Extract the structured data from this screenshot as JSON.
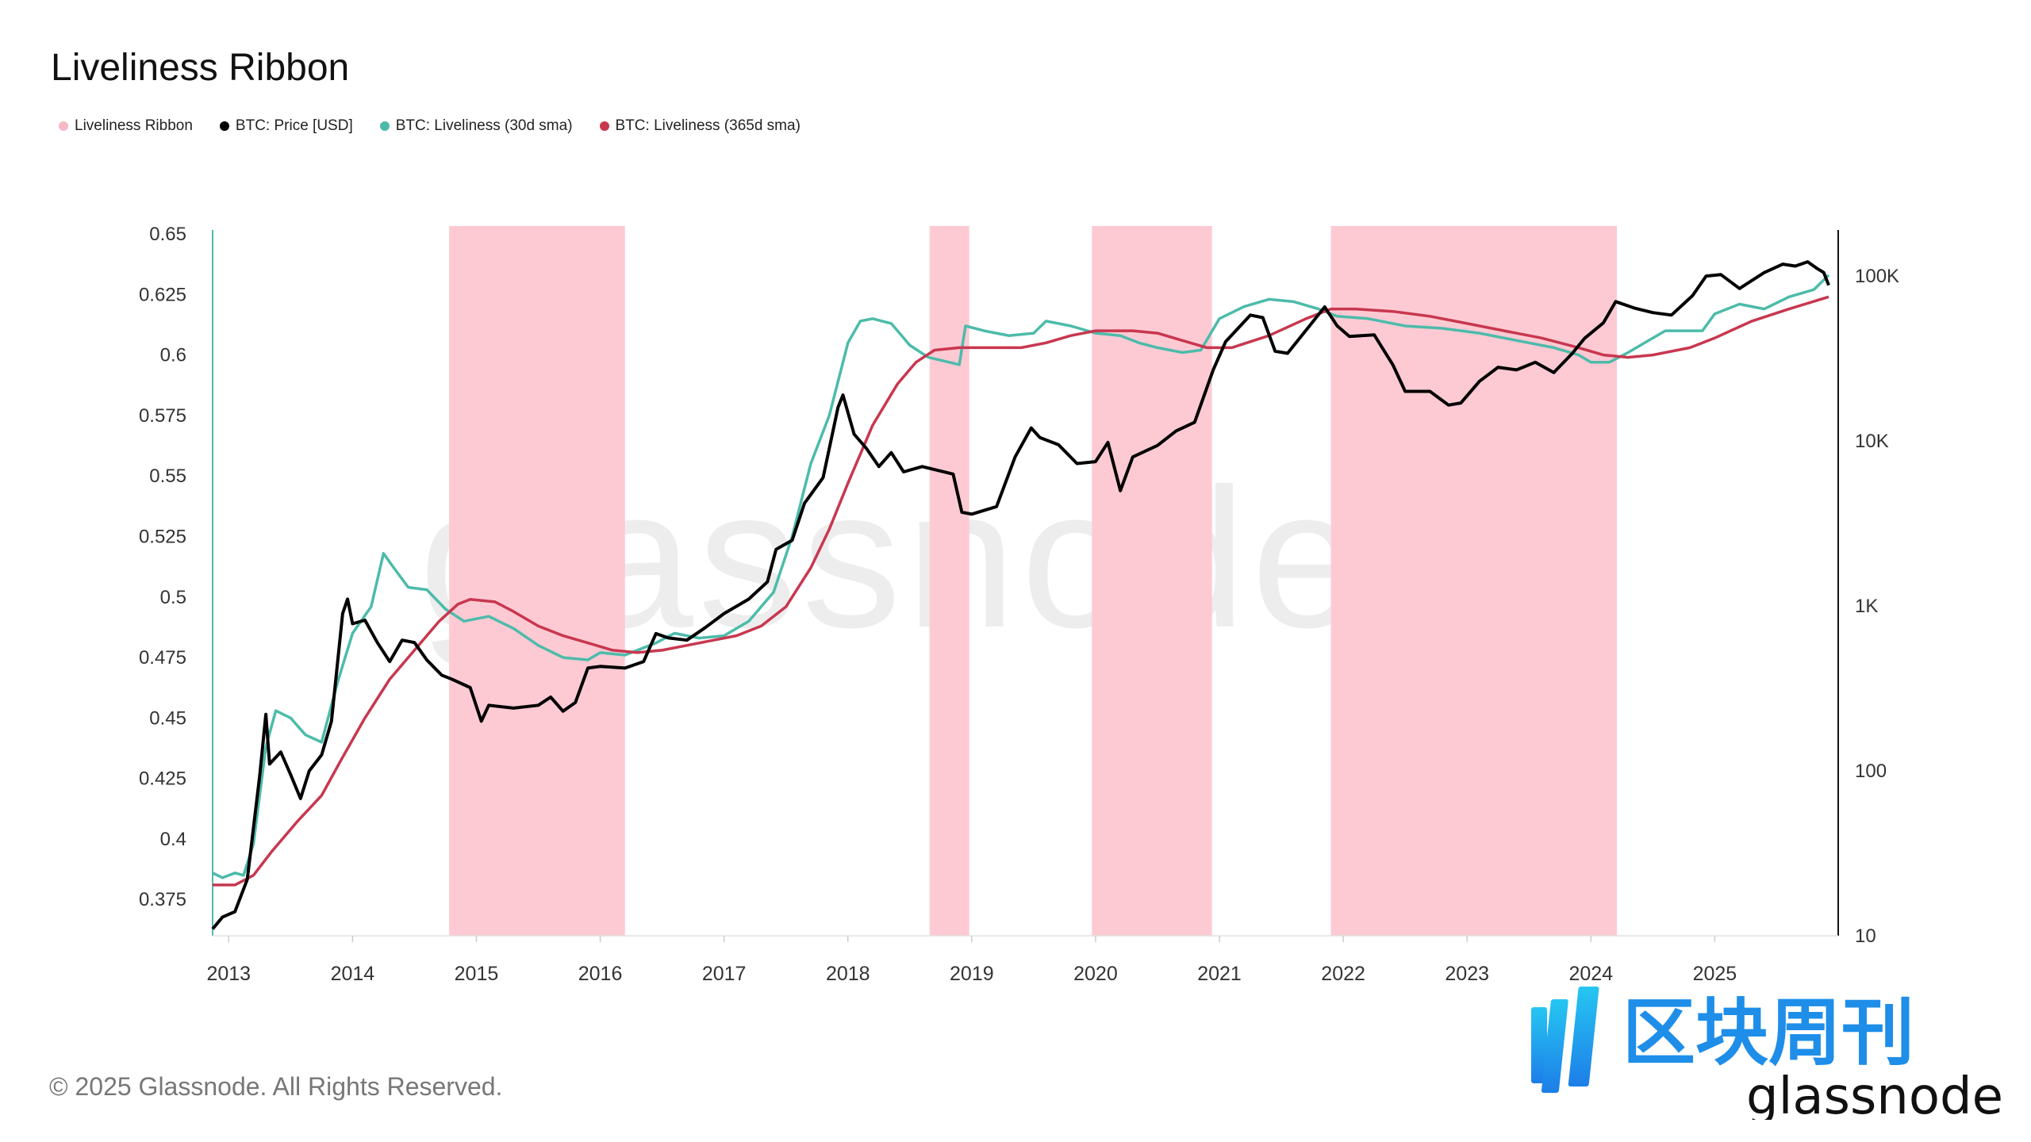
{
  "title": "Liveliness Ribbon",
  "legend": [
    {
      "label": "Liveliness Ribbon",
      "color": "#f6b9c4"
    },
    {
      "label": "BTC: Price [USD]",
      "color": "#000000"
    },
    {
      "label": "BTC: Liveliness (30d sma)",
      "color": "#4dbbaa"
    },
    {
      "label": "BTC: Liveliness (365d sma)",
      "color": "#c8374f"
    }
  ],
  "footer": "© 2025 Glassnode. All Rights Reserved.",
  "watermark": "glassnode",
  "brand": {
    "cn_text": "区块周刊",
    "en_text": "glassnode"
  },
  "chart_data": {
    "type": "line",
    "title": "Liveliness Ribbon",
    "x_range": [
      2012.87,
      2025.92
    ],
    "y_left": {
      "ticks": [
        0.65,
        0.625,
        0.6,
        0.575,
        0.55,
        0.525,
        0.5,
        0.475,
        0.45,
        0.425,
        0.4,
        0.375
      ],
      "range": [
        0.36,
        0.65
      ]
    },
    "y_right": {
      "scale": "log",
      "ticks": [
        100000,
        10000,
        1000,
        100,
        10
      ],
      "tick_labels": [
        "100K",
        "10K",
        "1K",
        "100",
        "10"
      ],
      "range": [
        10,
        180000
      ]
    },
    "x_ticks": [
      "2013",
      "2014",
      "2015",
      "2016",
      "2017",
      "2018",
      "2019",
      "2020",
      "2021",
      "2022",
      "2023",
      "2024",
      "2025"
    ],
    "ribbon_periods": [
      [
        2014.78,
        2016.2
      ],
      [
        2018.66,
        2018.98
      ],
      [
        2019.97,
        2020.94
      ],
      [
        2021.9,
        2024.21
      ]
    ],
    "series": [
      {
        "name": "BTC: Liveliness (30d sma)",
        "axis": "left",
        "color": "#4dbbaa",
        "points": [
          [
            2012.87,
            0.386
          ],
          [
            2012.95,
            0.384
          ],
          [
            2013.05,
            0.386
          ],
          [
            2013.12,
            0.385
          ],
          [
            2013.2,
            0.398
          ],
          [
            2013.3,
            0.438
          ],
          [
            2013.38,
            0.453
          ],
          [
            2013.5,
            0.45
          ],
          [
            2013.62,
            0.443
          ],
          [
            2013.75,
            0.44
          ],
          [
            2013.88,
            0.465
          ],
          [
            2014.0,
            0.485
          ],
          [
            2014.15,
            0.496
          ],
          [
            2014.25,
            0.518
          ],
          [
            2014.32,
            0.513
          ],
          [
            2014.45,
            0.504
          ],
          [
            2014.6,
            0.503
          ],
          [
            2014.75,
            0.495
          ],
          [
            2014.9,
            0.49
          ],
          [
            2015.1,
            0.492
          ],
          [
            2015.3,
            0.487
          ],
          [
            2015.5,
            0.48
          ],
          [
            2015.7,
            0.475
          ],
          [
            2015.9,
            0.474
          ],
          [
            2016.0,
            0.477
          ],
          [
            2016.2,
            0.476
          ],
          [
            2016.3,
            0.478
          ],
          [
            2016.45,
            0.481
          ],
          [
            2016.6,
            0.485
          ],
          [
            2016.8,
            0.483
          ],
          [
            2017.0,
            0.484
          ],
          [
            2017.2,
            0.49
          ],
          [
            2017.4,
            0.502
          ],
          [
            2017.55,
            0.525
          ],
          [
            2017.7,
            0.555
          ],
          [
            2017.85,
            0.575
          ],
          [
            2018.0,
            0.605
          ],
          [
            2018.1,
            0.614
          ],
          [
            2018.2,
            0.615
          ],
          [
            2018.35,
            0.613
          ],
          [
            2018.5,
            0.604
          ],
          [
            2018.65,
            0.599
          ],
          [
            2018.9,
            0.596
          ],
          [
            2018.95,
            0.612
          ],
          [
            2019.1,
            0.61
          ],
          [
            2019.3,
            0.608
          ],
          [
            2019.5,
            0.609
          ],
          [
            2019.6,
            0.614
          ],
          [
            2019.8,
            0.612
          ],
          [
            2020.0,
            0.609
          ],
          [
            2020.2,
            0.608
          ],
          [
            2020.35,
            0.605
          ],
          [
            2020.5,
            0.603
          ],
          [
            2020.7,
            0.601
          ],
          [
            2020.85,
            0.602
          ],
          [
            2021.0,
            0.615
          ],
          [
            2021.2,
            0.62
          ],
          [
            2021.4,
            0.623
          ],
          [
            2021.6,
            0.622
          ],
          [
            2021.8,
            0.619
          ],
          [
            2021.95,
            0.616
          ],
          [
            2022.2,
            0.615
          ],
          [
            2022.5,
            0.612
          ],
          [
            2022.8,
            0.611
          ],
          [
            2023.1,
            0.609
          ],
          [
            2023.4,
            0.606
          ],
          [
            2023.7,
            0.603
          ],
          [
            2023.9,
            0.6
          ],
          [
            2024.0,
            0.597
          ],
          [
            2024.15,
            0.597
          ],
          [
            2024.3,
            0.601
          ],
          [
            2024.6,
            0.61
          ],
          [
            2024.9,
            0.61
          ],
          [
            2025.0,
            0.617
          ],
          [
            2025.2,
            0.621
          ],
          [
            2025.4,
            0.619
          ],
          [
            2025.6,
            0.624
          ],
          [
            2025.8,
            0.627
          ],
          [
            2025.92,
            0.633
          ]
        ]
      },
      {
        "name": "BTC: Liveliness (365d sma)",
        "axis": "left",
        "color": "#c8374f",
        "points": [
          [
            2012.87,
            0.381
          ],
          [
            2013.05,
            0.381
          ],
          [
            2013.2,
            0.385
          ],
          [
            2013.35,
            0.395
          ],
          [
            2013.55,
            0.407
          ],
          [
            2013.75,
            0.418
          ],
          [
            2013.9,
            0.432
          ],
          [
            2014.1,
            0.45
          ],
          [
            2014.3,
            0.466
          ],
          [
            2014.5,
            0.478
          ],
          [
            2014.7,
            0.49
          ],
          [
            2014.85,
            0.497
          ],
          [
            2014.95,
            0.499
          ],
          [
            2015.15,
            0.498
          ],
          [
            2015.3,
            0.494
          ],
          [
            2015.5,
            0.488
          ],
          [
            2015.7,
            0.484
          ],
          [
            2015.9,
            0.481
          ],
          [
            2016.1,
            0.478
          ],
          [
            2016.3,
            0.477
          ],
          [
            2016.5,
            0.478
          ],
          [
            2016.7,
            0.48
          ],
          [
            2016.9,
            0.482
          ],
          [
            2017.1,
            0.484
          ],
          [
            2017.3,
            0.488
          ],
          [
            2017.5,
            0.496
          ],
          [
            2017.7,
            0.512
          ],
          [
            2017.85,
            0.528
          ],
          [
            2018.0,
            0.547
          ],
          [
            2018.2,
            0.571
          ],
          [
            2018.4,
            0.588
          ],
          [
            2018.55,
            0.597
          ],
          [
            2018.7,
            0.602
          ],
          [
            2018.9,
            0.603
          ],
          [
            2019.1,
            0.603
          ],
          [
            2019.4,
            0.603
          ],
          [
            2019.6,
            0.605
          ],
          [
            2019.8,
            0.608
          ],
          [
            2020.0,
            0.61
          ],
          [
            2020.3,
            0.61
          ],
          [
            2020.5,
            0.609
          ],
          [
            2020.7,
            0.606
          ],
          [
            2020.9,
            0.603
          ],
          [
            2021.1,
            0.603
          ],
          [
            2021.4,
            0.608
          ],
          [
            2021.7,
            0.615
          ],
          [
            2021.9,
            0.619
          ],
          [
            2022.1,
            0.619
          ],
          [
            2022.4,
            0.618
          ],
          [
            2022.7,
            0.616
          ],
          [
            2023.0,
            0.613
          ],
          [
            2023.3,
            0.61
          ],
          [
            2023.6,
            0.607
          ],
          [
            2023.9,
            0.603
          ],
          [
            2024.1,
            0.6
          ],
          [
            2024.3,
            0.599
          ],
          [
            2024.5,
            0.6
          ],
          [
            2024.8,
            0.603
          ],
          [
            2025.0,
            0.607
          ],
          [
            2025.3,
            0.614
          ],
          [
            2025.6,
            0.619
          ],
          [
            2025.92,
            0.624
          ]
        ]
      },
      {
        "name": "BTC: Price [USD]",
        "axis": "right",
        "color": "#000000",
        "points": [
          [
            2012.87,
            11
          ],
          [
            2012.95,
            13
          ],
          [
            2013.05,
            14
          ],
          [
            2013.15,
            22
          ],
          [
            2013.25,
            93
          ],
          [
            2013.3,
            220
          ],
          [
            2013.33,
            110
          ],
          [
            2013.42,
            130
          ],
          [
            2013.5,
            95
          ],
          [
            2013.58,
            68
          ],
          [
            2013.65,
            100
          ],
          [
            2013.75,
            125
          ],
          [
            2013.83,
            200
          ],
          [
            2013.92,
            900
          ],
          [
            2013.96,
            1100
          ],
          [
            2014.0,
            780
          ],
          [
            2014.1,
            820
          ],
          [
            2014.2,
            600
          ],
          [
            2014.3,
            460
          ],
          [
            2014.4,
            620
          ],
          [
            2014.5,
            600
          ],
          [
            2014.6,
            470
          ],
          [
            2014.72,
            380
          ],
          [
            2014.8,
            360
          ],
          [
            2014.95,
            320
          ],
          [
            2015.04,
            200
          ],
          [
            2015.1,
            250
          ],
          [
            2015.3,
            240
          ],
          [
            2015.5,
            250
          ],
          [
            2015.6,
            280
          ],
          [
            2015.7,
            230
          ],
          [
            2015.8,
            260
          ],
          [
            2015.9,
            420
          ],
          [
            2016.0,
            430
          ],
          [
            2016.2,
            420
          ],
          [
            2016.35,
            460
          ],
          [
            2016.45,
            680
          ],
          [
            2016.55,
            640
          ],
          [
            2016.7,
            620
          ],
          [
            2016.85,
            740
          ],
          [
            2017.0,
            900
          ],
          [
            2017.2,
            1100
          ],
          [
            2017.35,
            1400
          ],
          [
            2017.42,
            2200
          ],
          [
            2017.55,
            2500
          ],
          [
            2017.65,
            4200
          ],
          [
            2017.8,
            6000
          ],
          [
            2017.92,
            16000
          ],
          [
            2017.96,
            19000
          ],
          [
            2018.05,
            11000
          ],
          [
            2018.15,
            9000
          ],
          [
            2018.25,
            7000
          ],
          [
            2018.35,
            8500
          ],
          [
            2018.45,
            6500
          ],
          [
            2018.6,
            7000
          ],
          [
            2018.85,
            6300
          ],
          [
            2018.92,
            3700
          ],
          [
            2019.0,
            3600
          ],
          [
            2019.2,
            4000
          ],
          [
            2019.35,
            8000
          ],
          [
            2019.48,
            12000
          ],
          [
            2019.55,
            10500
          ],
          [
            2019.7,
            9500
          ],
          [
            2019.85,
            7300
          ],
          [
            2020.0,
            7500
          ],
          [
            2020.1,
            9800
          ],
          [
            2020.2,
            5000
          ],
          [
            2020.3,
            8000
          ],
          [
            2020.5,
            9400
          ],
          [
            2020.65,
            11500
          ],
          [
            2020.8,
            13000
          ],
          [
            2020.95,
            27000
          ],
          [
            2021.05,
            40000
          ],
          [
            2021.25,
            58000
          ],
          [
            2021.35,
            56000
          ],
          [
            2021.45,
            35000
          ],
          [
            2021.55,
            34000
          ],
          [
            2021.7,
            47000
          ],
          [
            2021.85,
            65000
          ],
          [
            2021.95,
            50000
          ],
          [
            2022.05,
            43000
          ],
          [
            2022.25,
            44000
          ],
          [
            2022.4,
            29000
          ],
          [
            2022.5,
            20000
          ],
          [
            2022.7,
            20000
          ],
          [
            2022.85,
            16500
          ],
          [
            2022.95,
            17000
          ],
          [
            2023.1,
            23000
          ],
          [
            2023.25,
            28000
          ],
          [
            2023.4,
            27000
          ],
          [
            2023.55,
            30000
          ],
          [
            2023.7,
            26000
          ],
          [
            2023.85,
            34000
          ],
          [
            2023.95,
            42000
          ],
          [
            2024.1,
            52000
          ],
          [
            2024.2,
            70000
          ],
          [
            2024.35,
            64000
          ],
          [
            2024.5,
            60000
          ],
          [
            2024.65,
            58000
          ],
          [
            2024.82,
            76000
          ],
          [
            2024.93,
            100000
          ],
          [
            2025.05,
            102000
          ],
          [
            2025.2,
            84000
          ],
          [
            2025.3,
            94000
          ],
          [
            2025.4,
            105000
          ],
          [
            2025.55,
            118000
          ],
          [
            2025.65,
            115000
          ],
          [
            2025.75,
            122000
          ],
          [
            2025.82,
            112000
          ],
          [
            2025.88,
            105000
          ],
          [
            2025.92,
            88000
          ]
        ]
      }
    ]
  }
}
